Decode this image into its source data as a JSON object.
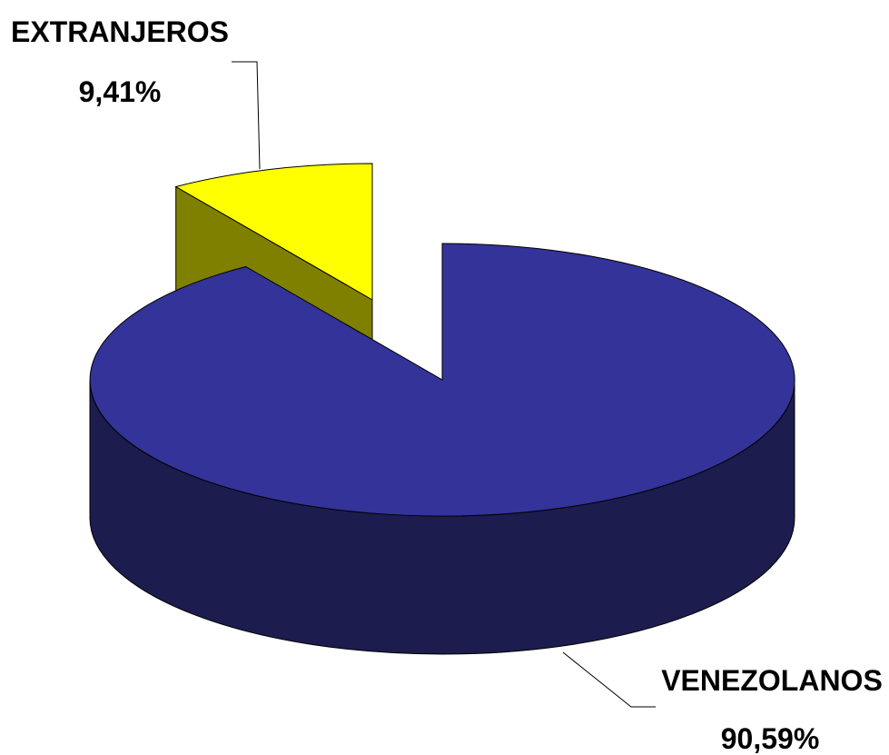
{
  "chart_data": {
    "type": "pie",
    "categories": [
      "VENEZOLANOS",
      "EXTRANJEROS"
    ],
    "values": [
      90.59,
      9.41
    ],
    "value_labels": [
      "90,59%",
      "9,41%"
    ],
    "colors": [
      "#333399",
      "#ffff00"
    ],
    "side_colors": [
      "#1c1c4f",
      "#808000"
    ]
  }
}
